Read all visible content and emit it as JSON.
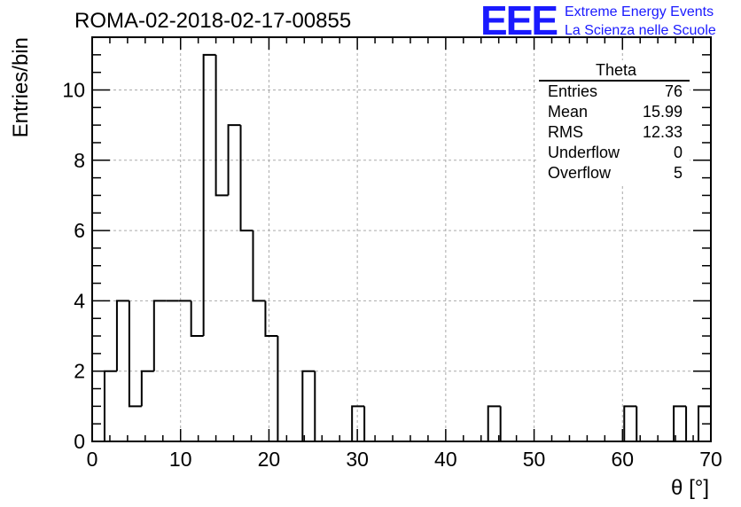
{
  "run_title": "ROMA-02-2018-02-17-00855",
  "logo": {
    "mark": "EEE",
    "line1": "Extreme Energy Events",
    "line2": "La Scienza nelle Scuole",
    "color": "#1a1aff"
  },
  "stats_box": {
    "title": "Theta",
    "rows": [
      {
        "label": "Entries",
        "value": "76"
      },
      {
        "label": "Mean",
        "value": "15.99"
      },
      {
        "label": "RMS",
        "value": "12.33"
      },
      {
        "label": "Underflow",
        "value": "0"
      },
      {
        "label": "Overflow",
        "value": "5"
      }
    ]
  },
  "chart_data": {
    "type": "bar",
    "title": "ROMA-02-2018-02-17-00855",
    "xlabel": "θ [°]",
    "ylabel": "Entries/bin",
    "xlim": [
      0,
      70
    ],
    "ylim": [
      0,
      11.5
    ],
    "x_ticks": [
      0,
      10,
      20,
      30,
      40,
      50,
      60,
      70
    ],
    "y_ticks": [
      0,
      2,
      4,
      6,
      8,
      10
    ],
    "grid": true,
    "bin_width": 1.4,
    "bin_edges_start": 0,
    "values": [
      0,
      2,
      4,
      1,
      2,
      4,
      4,
      4,
      3,
      11,
      7,
      9,
      6,
      4,
      3,
      0,
      0,
      2,
      0,
      0,
      0,
      1,
      0,
      0,
      0,
      0,
      0,
      0,
      0,
      0,
      0,
      0,
      1,
      0,
      0,
      0,
      0,
      0,
      0,
      0,
      0,
      0,
      0,
      1,
      0,
      0,
      0,
      1,
      0,
      1
    ],
    "line_color": "#000000"
  }
}
